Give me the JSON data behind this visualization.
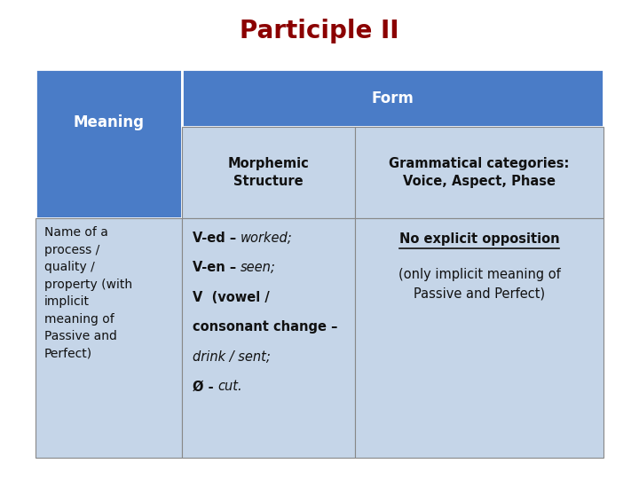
{
  "title": "Participle II",
  "title_color": "#8B0000",
  "title_fontsize": 20,
  "bg_color": "#FFFFFF",
  "header_blue_dark": "#4A7CC7",
  "header_blue_light": "#C5D5E8",
  "c0": 0.055,
  "c1": 0.285,
  "c2": 0.555,
  "c3": 0.945,
  "r0": 0.855,
  "r1": 0.735,
  "r2": 0.545,
  "r3": 0.045,
  "header1_text": "Meaning",
  "header2_text": "Form",
  "subheader2_text": "Morphemic\nStructure",
  "subheader3_text": "Grammatical categories:\nVoice, Aspect, Phase",
  "cell1_text": "Name of a\nprocess /\nquality /\nproperty (with\nimplicit\nmeaning of\nPassive and\nPerfect)",
  "cell3_underline": "No explicit opposition",
  "cell3_rest": "(only implicit meaning of\nPassive and Perfect)"
}
